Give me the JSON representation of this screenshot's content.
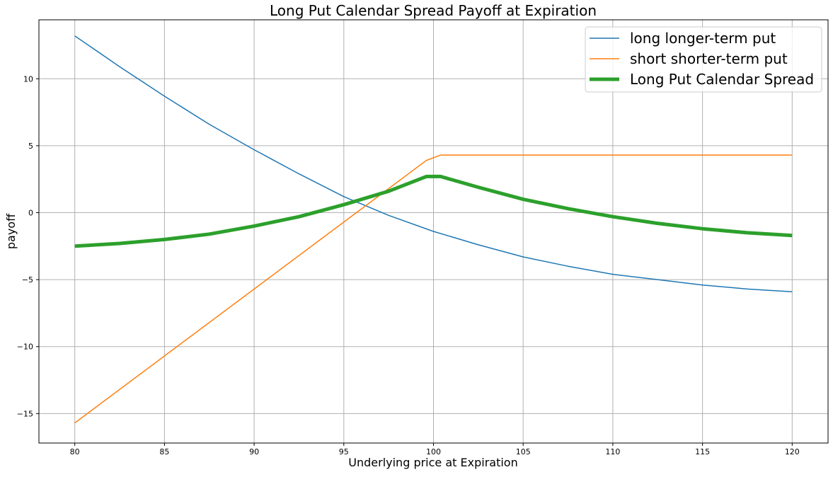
{
  "chart_data": {
    "type": "line",
    "title": "Long Put Calendar Spread Payoff at Expiration",
    "xlabel": "Underlying price at Expiration",
    "ylabel": "payoff",
    "xlim": [
      78,
      122
    ],
    "ylim": [
      -17.2,
      14.4
    ],
    "x_ticks": [
      "80",
      "85",
      "90",
      "95",
      "100",
      "105",
      "110",
      "115",
      "120"
    ],
    "y_ticks": [
      "−15",
      "−10",
      "−5",
      "0",
      "5",
      "10"
    ],
    "grid": true,
    "legend_position": "top-right",
    "series": [
      {
        "name": "long longer-term put",
        "color": "#1f77b4",
        "x": [
          80,
          82.5,
          85,
          87.5,
          90,
          92.5,
          95,
          97.5,
          100,
          102.5,
          105,
          107.5,
          110,
          112.5,
          115,
          117.5,
          120
        ],
        "y": [
          13.2,
          10.9,
          8.7,
          6.6,
          4.7,
          2.9,
          1.2,
          -0.2,
          -1.4,
          -2.4,
          -3.3,
          -4.0,
          -4.6,
          -5.0,
          -5.4,
          -5.7,
          -5.9
        ]
      },
      {
        "name": "short shorter-term put",
        "color": "#ff7f0e",
        "x": [
          80,
          99.6,
          100.4,
          120
        ],
        "y": [
          -15.7,
          3.9,
          4.3,
          4.3
        ]
      },
      {
        "name": "Long Put Calendar Spread",
        "color": "#2ca02c",
        "x": [
          80,
          82.5,
          85,
          87.5,
          90,
          92.5,
          95,
          97.5,
          99.6,
          100.4,
          102.5,
          105,
          107.5,
          110,
          112.5,
          115,
          117.5,
          120
        ],
        "y": [
          -2.5,
          -2.3,
          -2.0,
          -1.6,
          -1.0,
          -0.3,
          0.6,
          1.6,
          2.7,
          2.7,
          1.9,
          1.0,
          0.3,
          -0.3,
          -0.8,
          -1.2,
          -1.5,
          -1.7
        ]
      }
    ]
  }
}
